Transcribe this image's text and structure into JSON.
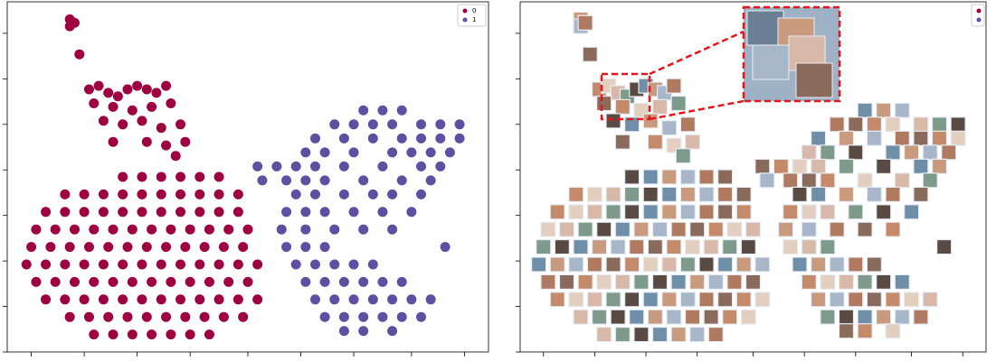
{
  "chart_data": [
    {
      "type": "scatter",
      "xlim": [
        0,
        100
      ],
      "ylim": [
        0,
        100
      ],
      "xticks": [
        5,
        16,
        27,
        38,
        50,
        61,
        72,
        84,
        95
      ],
      "yticks": [
        0,
        13,
        26,
        39,
        52,
        65,
        78,
        91
      ],
      "legend": "upper right",
      "series": [
        {
          "name": "0",
          "color": "#9e0142",
          "x": [
            13,
            13,
            14,
            15,
            17,
            19,
            21,
            23,
            25,
            27,
            29,
            31,
            33,
            18,
            22,
            26,
            30,
            34,
            20,
            24,
            28,
            32,
            36,
            22,
            29,
            33,
            37,
            35,
            24,
            28,
            32,
            36,
            40,
            44,
            12,
            16,
            20,
            24,
            28,
            32,
            36,
            40,
            44,
            48,
            8,
            12,
            16,
            20,
            24,
            28,
            32,
            36,
            40,
            44,
            48,
            6,
            10,
            14,
            18,
            22,
            26,
            30,
            34,
            38,
            42,
            46,
            50,
            5,
            9,
            13,
            17,
            21,
            25,
            29,
            33,
            37,
            41,
            45,
            49,
            4,
            8,
            12,
            16,
            20,
            24,
            28,
            32,
            36,
            40,
            44,
            48,
            52,
            6,
            10,
            14,
            18,
            22,
            26,
            30,
            34,
            38,
            42,
            46,
            50,
            8,
            12,
            16,
            20,
            24,
            28,
            32,
            36,
            40,
            44,
            48,
            52,
            13,
            17,
            21,
            25,
            29,
            33,
            37,
            41,
            45,
            49,
            18,
            22,
            26,
            30,
            34,
            38,
            42
          ],
          "y": [
            95,
            93,
            94,
            85,
            75,
            76,
            74,
            73,
            75,
            76,
            75,
            74,
            76,
            71,
            70,
            69,
            70,
            71,
            66,
            65,
            66,
            64,
            65,
            60,
            60,
            59,
            60,
            56,
            50,
            50,
            50,
            50,
            50,
            50,
            45,
            45,
            45,
            45,
            45,
            45,
            45,
            45,
            45,
            45,
            40,
            40,
            40,
            40,
            40,
            40,
            40,
            40,
            40,
            40,
            40,
            35,
            35,
            35,
            35,
            35,
            35,
            35,
            35,
            35,
            35,
            35,
            35,
            30,
            30,
            30,
            30,
            30,
            30,
            30,
            30,
            30,
            30,
            30,
            30,
            25,
            25,
            25,
            25,
            25,
            25,
            25,
            25,
            25,
            25,
            25,
            25,
            25,
            20,
            20,
            20,
            20,
            20,
            20,
            20,
            20,
            20,
            20,
            20,
            20,
            15,
            15,
            15,
            15,
            15,
            15,
            15,
            15,
            15,
            15,
            15,
            15,
            10,
            10,
            10,
            10,
            10,
            10,
            10,
            10,
            10,
            10,
            5,
            5,
            5,
            5,
            5,
            5,
            5
          ]
        },
        {
          "name": "1",
          "color": "#5e4fa2",
          "x": [
            74,
            78,
            82,
            68,
            72,
            76,
            80,
            86,
            90,
            94,
            64,
            70,
            76,
            82,
            86,
            90,
            94,
            62,
            66,
            72,
            80,
            84,
            88,
            92,
            52,
            56,
            60,
            64,
            70,
            78,
            86,
            90,
            53,
            58,
            62,
            66,
            74,
            82,
            88,
            60,
            64,
            70,
            76,
            80,
            86,
            58,
            62,
            66,
            72,
            78,
            84,
            57,
            62,
            68,
            74,
            80,
            58,
            62,
            66,
            91,
            60,
            64,
            68,
            72,
            76,
            62,
            66,
            70,
            74,
            78,
            82,
            64,
            68,
            72,
            76,
            80,
            84,
            88,
            66,
            70,
            74,
            78,
            82,
            86,
            70,
            74,
            80
          ],
          "y": [
            69,
            69,
            69,
            65,
            65,
            65,
            65,
            65,
            65,
            65,
            61,
            61,
            61,
            61,
            61,
            61,
            61,
            57,
            57,
            57,
            57,
            57,
            57,
            57,
            53,
            53,
            53,
            53,
            53,
            53,
            53,
            53,
            49,
            49,
            49,
            49,
            49,
            49,
            49,
            45,
            45,
            45,
            45,
            45,
            45,
            40,
            40,
            40,
            40,
            40,
            40,
            35,
            35,
            35,
            35,
            35,
            30,
            30,
            30,
            30,
            25,
            25,
            25,
            25,
            25,
            20,
            20,
            20,
            20,
            20,
            20,
            15,
            15,
            15,
            15,
            15,
            15,
            15,
            10,
            10,
            10,
            10,
            10,
            10,
            6,
            6,
            6
          ]
        }
      ]
    },
    {
      "type": "image-scatter",
      "xlim": [
        0,
        100
      ],
      "ylim": [
        0,
        100
      ],
      "xticks": [
        5,
        16,
        27,
        38,
        50,
        61,
        72,
        84,
        95
      ],
      "yticks": [
        0,
        13,
        26,
        39,
        52,
        65,
        78,
        91
      ],
      "legend_colors": [
        "#9e0142",
        "#5e4fa2"
      ],
      "zoom_color": "#e8141a"
    }
  ]
}
